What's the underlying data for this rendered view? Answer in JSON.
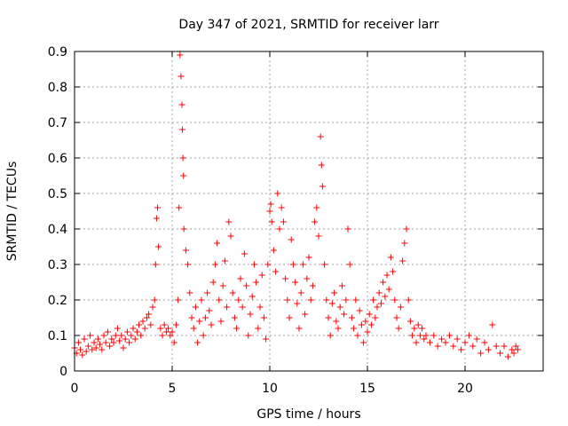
{
  "chart_data": {
    "type": "scatter",
    "title": "Day 347 of 2021, SRMTID for receiver larr",
    "xlabel": "GPS time / hours",
    "ylabel": "SRMTID / TECUs",
    "xlim": [
      0,
      24
    ],
    "ylim": [
      0,
      0.9
    ],
    "xticks": [
      0,
      5,
      10,
      15,
      20
    ],
    "xtick_labels": [
      "0",
      "5",
      "10",
      "15",
      "20"
    ],
    "yticks": [
      0,
      0.1,
      0.2,
      0.3,
      0.4,
      0.5,
      0.6,
      0.7,
      0.8,
      0.9
    ],
    "ytick_labels": [
      "0",
      "0.1",
      "0.2",
      "0.3",
      "0.4",
      "0.5",
      "0.6",
      "0.7",
      "0.8",
      "0.9"
    ],
    "grid": true,
    "marker": "+",
    "color": "#ff0000",
    "series": [
      {
        "name": "SRMTID",
        "points": [
          [
            0.0,
            0.065
          ],
          [
            0.1,
            0.05
          ],
          [
            0.2,
            0.08
          ],
          [
            0.3,
            0.06
          ],
          [
            0.4,
            0.045
          ],
          [
            0.5,
            0.09
          ],
          [
            0.6,
            0.055
          ],
          [
            0.7,
            0.07
          ],
          [
            0.8,
            0.1
          ],
          [
            0.9,
            0.06
          ],
          [
            1.0,
            0.08
          ],
          [
            1.1,
            0.065
          ],
          [
            1.2,
            0.09
          ],
          [
            1.3,
            0.075
          ],
          [
            1.4,
            0.06
          ],
          [
            1.5,
            0.1
          ],
          [
            1.6,
            0.08
          ],
          [
            1.7,
            0.11
          ],
          [
            1.8,
            0.07
          ],
          [
            1.9,
            0.09
          ],
          [
            2.0,
            0.08
          ],
          [
            2.1,
            0.1
          ],
          [
            2.2,
            0.12
          ],
          [
            2.3,
            0.085
          ],
          [
            2.4,
            0.1
          ],
          [
            2.5,
            0.065
          ],
          [
            2.6,
            0.09
          ],
          [
            2.7,
            0.11
          ],
          [
            2.8,
            0.08
          ],
          [
            2.9,
            0.1
          ],
          [
            3.0,
            0.12
          ],
          [
            3.1,
            0.09
          ],
          [
            3.2,
            0.11
          ],
          [
            3.3,
            0.13
          ],
          [
            3.4,
            0.1
          ],
          [
            3.5,
            0.14
          ],
          [
            3.6,
            0.12
          ],
          [
            3.7,
            0.15
          ],
          [
            3.8,
            0.16
          ],
          [
            3.9,
            0.13
          ],
          [
            4.0,
            0.18
          ],
          [
            4.1,
            0.2
          ],
          [
            4.15,
            0.3
          ],
          [
            4.2,
            0.43
          ],
          [
            4.25,
            0.46
          ],
          [
            4.3,
            0.35
          ],
          [
            4.4,
            0.12
          ],
          [
            4.5,
            0.1
          ],
          [
            4.6,
            0.13
          ],
          [
            4.7,
            0.11
          ],
          [
            4.8,
            0.12
          ],
          [
            4.9,
            0.1
          ],
          [
            5.0,
            0.11
          ],
          [
            5.1,
            0.08
          ],
          [
            5.2,
            0.13
          ],
          [
            5.3,
            0.2
          ],
          [
            5.35,
            0.46
          ],
          [
            5.4,
            0.89
          ],
          [
            5.45,
            0.83
          ],
          [
            5.5,
            0.75
          ],
          [
            5.52,
            0.68
          ],
          [
            5.55,
            0.6
          ],
          [
            5.58,
            0.55
          ],
          [
            5.6,
            0.4
          ],
          [
            5.7,
            0.34
          ],
          [
            5.8,
            0.3
          ],
          [
            5.9,
            0.22
          ],
          [
            6.0,
            0.15
          ],
          [
            6.1,
            0.12
          ],
          [
            6.2,
            0.18
          ],
          [
            6.3,
            0.08
          ],
          [
            6.4,
            0.14
          ],
          [
            6.5,
            0.2
          ],
          [
            6.6,
            0.1
          ],
          [
            6.7,
            0.15
          ],
          [
            6.8,
            0.22
          ],
          [
            6.9,
            0.17
          ],
          [
            7.0,
            0.13
          ],
          [
            7.1,
            0.25
          ],
          [
            7.2,
            0.3
          ],
          [
            7.3,
            0.36
          ],
          [
            7.4,
            0.2
          ],
          [
            7.5,
            0.14
          ],
          [
            7.6,
            0.24
          ],
          [
            7.7,
            0.31
          ],
          [
            7.8,
            0.18
          ],
          [
            7.9,
            0.42
          ],
          [
            8.0,
            0.38
          ],
          [
            8.1,
            0.22
          ],
          [
            8.2,
            0.15
          ],
          [
            8.3,
            0.12
          ],
          [
            8.4,
            0.2
          ],
          [
            8.5,
            0.26
          ],
          [
            8.6,
            0.18
          ],
          [
            8.7,
            0.33
          ],
          [
            8.8,
            0.24
          ],
          [
            8.9,
            0.1
          ],
          [
            9.0,
            0.16
          ],
          [
            9.1,
            0.21
          ],
          [
            9.2,
            0.3
          ],
          [
            9.3,
            0.25
          ],
          [
            9.4,
            0.12
          ],
          [
            9.5,
            0.18
          ],
          [
            9.6,
            0.27
          ],
          [
            9.7,
            0.15
          ],
          [
            9.8,
            0.09
          ],
          [
            9.9,
            0.3
          ],
          [
            10.0,
            0.45
          ],
          [
            10.05,
            0.47
          ],
          [
            10.1,
            0.42
          ],
          [
            10.2,
            0.34
          ],
          [
            10.3,
            0.28
          ],
          [
            10.4,
            0.5
          ],
          [
            10.5,
            0.4
          ],
          [
            10.6,
            0.46
          ],
          [
            10.7,
            0.42
          ],
          [
            10.8,
            0.26
          ],
          [
            10.9,
            0.2
          ],
          [
            11.0,
            0.15
          ],
          [
            11.1,
            0.37
          ],
          [
            11.2,
            0.3
          ],
          [
            11.3,
            0.25
          ],
          [
            11.4,
            0.19
          ],
          [
            11.5,
            0.12
          ],
          [
            11.6,
            0.22
          ],
          [
            11.7,
            0.3
          ],
          [
            11.8,
            0.16
          ],
          [
            11.9,
            0.26
          ],
          [
            12.0,
            0.32
          ],
          [
            12.1,
            0.2
          ],
          [
            12.2,
            0.24
          ],
          [
            12.3,
            0.42
          ],
          [
            12.4,
            0.46
          ],
          [
            12.5,
            0.38
          ],
          [
            12.6,
            0.66
          ],
          [
            12.65,
            0.58
          ],
          [
            12.7,
            0.52
          ],
          [
            12.8,
            0.3
          ],
          [
            12.9,
            0.2
          ],
          [
            13.0,
            0.15
          ],
          [
            13.1,
            0.1
          ],
          [
            13.2,
            0.19
          ],
          [
            13.3,
            0.22
          ],
          [
            13.4,
            0.14
          ],
          [
            13.5,
            0.12
          ],
          [
            13.6,
            0.18
          ],
          [
            13.7,
            0.24
          ],
          [
            13.8,
            0.16
          ],
          [
            13.9,
            0.2
          ],
          [
            14.0,
            0.4
          ],
          [
            14.1,
            0.3
          ],
          [
            14.2,
            0.15
          ],
          [
            14.3,
            0.12
          ],
          [
            14.4,
            0.2
          ],
          [
            14.5,
            0.1
          ],
          [
            14.6,
            0.17
          ],
          [
            14.7,
            0.13
          ],
          [
            14.8,
            0.08
          ],
          [
            14.9,
            0.14
          ],
          [
            15.0,
            0.11
          ],
          [
            15.1,
            0.16
          ],
          [
            15.2,
            0.13
          ],
          [
            15.3,
            0.2
          ],
          [
            15.4,
            0.15
          ],
          [
            15.5,
            0.18
          ],
          [
            15.6,
            0.22
          ],
          [
            15.7,
            0.19
          ],
          [
            15.8,
            0.25
          ],
          [
            15.9,
            0.21
          ],
          [
            16.0,
            0.27
          ],
          [
            16.1,
            0.23
          ],
          [
            16.2,
            0.32
          ],
          [
            16.3,
            0.28
          ],
          [
            16.4,
            0.2
          ],
          [
            16.5,
            0.15
          ],
          [
            16.6,
            0.12
          ],
          [
            16.7,
            0.18
          ],
          [
            16.8,
            0.31
          ],
          [
            16.9,
            0.36
          ],
          [
            17.0,
            0.4
          ],
          [
            17.1,
            0.2
          ],
          [
            17.2,
            0.14
          ],
          [
            17.3,
            0.1
          ],
          [
            17.4,
            0.12
          ],
          [
            17.5,
            0.08
          ],
          [
            17.6,
            0.13
          ],
          [
            17.7,
            0.1
          ],
          [
            17.8,
            0.12
          ],
          [
            17.9,
            0.09
          ],
          [
            18.0,
            0.1
          ],
          [
            18.2,
            0.08
          ],
          [
            18.4,
            0.1
          ],
          [
            18.6,
            0.07
          ],
          [
            18.8,
            0.09
          ],
          [
            19.0,
            0.08
          ],
          [
            19.2,
            0.1
          ],
          [
            19.4,
            0.07
          ],
          [
            19.6,
            0.09
          ],
          [
            19.8,
            0.06
          ],
          [
            20.0,
            0.08
          ],
          [
            20.2,
            0.1
          ],
          [
            20.4,
            0.07
          ],
          [
            20.6,
            0.09
          ],
          [
            20.8,
            0.05
          ],
          [
            21.0,
            0.08
          ],
          [
            21.2,
            0.06
          ],
          [
            21.4,
            0.13
          ],
          [
            21.6,
            0.07
          ],
          [
            21.8,
            0.05
          ],
          [
            22.0,
            0.07
          ],
          [
            22.2,
            0.04
          ],
          [
            22.4,
            0.06
          ],
          [
            22.5,
            0.05
          ],
          [
            22.6,
            0.07
          ],
          [
            22.7,
            0.06
          ]
        ]
      }
    ]
  }
}
